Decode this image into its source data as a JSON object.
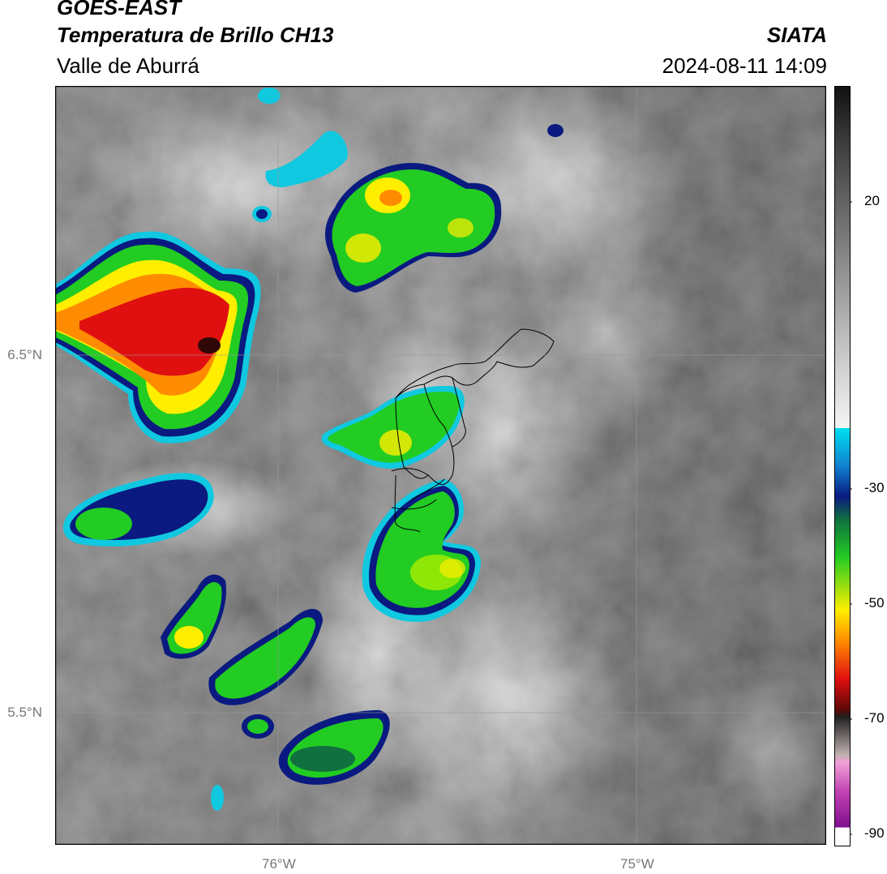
{
  "header": {
    "satellite": "GOES-EAST",
    "product": "Temperatura de Brillo CH13",
    "region": "Valle de Aburrá",
    "organization": "SIATA",
    "datetime": "2024-08-11 14:09"
  },
  "axes": {
    "lat_ticks": [
      {
        "label": "6.5°N",
        "value": 6.5
      },
      {
        "label": "5.5°N",
        "value": 5.5
      }
    ],
    "lon_ticks": [
      {
        "label": "76°W",
        "value": -76.0
      },
      {
        "label": "75°W",
        "value": -75.0
      }
    ]
  },
  "colorbar": {
    "ticks": [
      {
        "label": "20",
        "value": 20
      },
      {
        "label": "-30",
        "value": -30
      },
      {
        "label": "-50",
        "value": -50
      },
      {
        "label": "-70",
        "value": -70
      },
      {
        "label": "-90",
        "value": -90
      }
    ],
    "range": [
      -92,
      37
    ],
    "colors": {
      "magenta": "#d060c0",
      "dark_gray": "#303030",
      "red": "#e01010",
      "orange": "#ff8c00",
      "yellow": "#ffee00",
      "green": "#22cc22",
      "dark_green": "#107040",
      "navy": "#0a1a80",
      "blue": "#1060d0",
      "cyan": "#10c8e0",
      "white": "#f5f5f5",
      "gray": "#606060"
    }
  }
}
